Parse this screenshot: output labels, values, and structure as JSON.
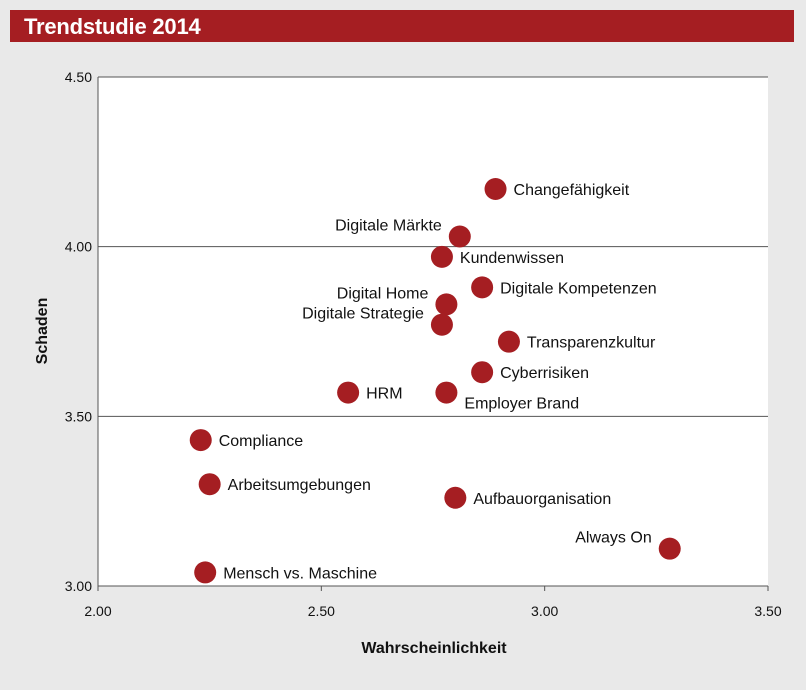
{
  "header": {
    "title": "Trendstudie 2014"
  },
  "colors": {
    "header_bg": "#a51e22",
    "point": "#a51e22",
    "grid": "#555555",
    "background": "#e9e9e9"
  },
  "chart_data": {
    "type": "scatter",
    "title": "Trendstudie 2014",
    "xlabel": "Wahrscheinlichkeit",
    "ylabel": "Schaden",
    "xlim": [
      2.0,
      3.5
    ],
    "ylim": [
      3.0,
      4.5
    ],
    "x_ticks": [
      "2.00",
      "2.50",
      "3.00",
      "3.50"
    ],
    "y_ticks": [
      "3.00",
      "3.50",
      "4.00",
      "4.50"
    ],
    "grid": "horizontal",
    "points": [
      {
        "label": "Changefähigkeit",
        "x": 2.89,
        "y": 4.17,
        "label_side": "right"
      },
      {
        "label": "Digitale Märkte",
        "x": 2.81,
        "y": 4.03,
        "label_side": "left"
      },
      {
        "label": "Kundenwissen",
        "x": 2.77,
        "y": 3.97,
        "label_side": "right"
      },
      {
        "label": "Digitale Kompetenzen",
        "x": 2.86,
        "y": 3.88,
        "label_side": "right"
      },
      {
        "label": "Digital Home",
        "x": 2.78,
        "y": 3.83,
        "label_side": "left"
      },
      {
        "label": "Digitale Strategie",
        "x": 2.77,
        "y": 3.77,
        "label_side": "left"
      },
      {
        "label": "Transparenzkultur",
        "x": 2.92,
        "y": 3.72,
        "label_side": "right"
      },
      {
        "label": "Cyberrisiken",
        "x": 2.86,
        "y": 3.63,
        "label_side": "right"
      },
      {
        "label": "HRM",
        "x": 2.56,
        "y": 3.57,
        "label_side": "right"
      },
      {
        "label": "Employer Brand",
        "x": 2.78,
        "y": 3.57,
        "label_side": "right-below"
      },
      {
        "label": "Compliance",
        "x": 2.23,
        "y": 3.43,
        "label_side": "right"
      },
      {
        "label": "Arbeitsumgebungen",
        "x": 2.25,
        "y": 3.3,
        "label_side": "right"
      },
      {
        "label": "Aufbauorganisation",
        "x": 2.8,
        "y": 3.26,
        "label_side": "right"
      },
      {
        "label": "Always On",
        "x": 3.28,
        "y": 3.11,
        "label_side": "left"
      },
      {
        "label": "Mensch vs. Maschine",
        "x": 2.24,
        "y": 3.04,
        "label_side": "right"
      }
    ]
  }
}
